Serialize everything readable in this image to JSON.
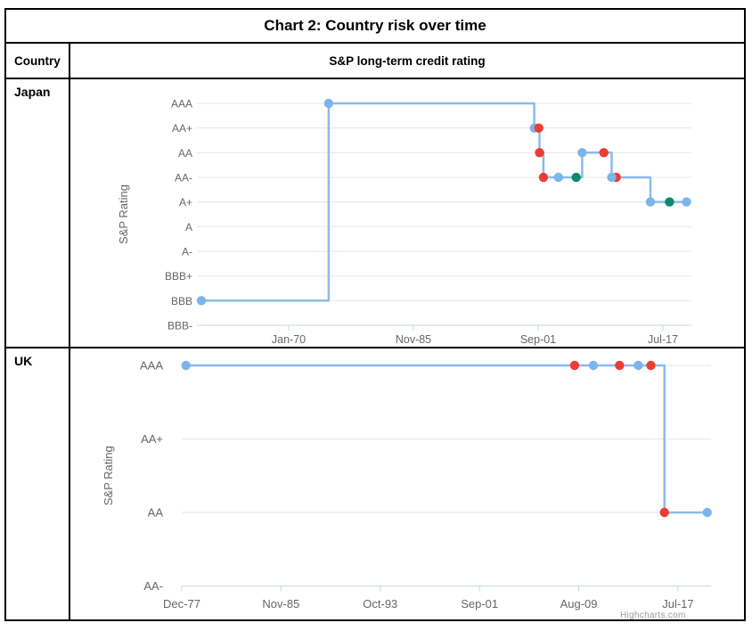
{
  "page_title": "Chart 2: Country risk over time",
  "table": {
    "column_header": "Country",
    "value_header": "S&P long-term credit rating",
    "row_labels": [
      "Japan",
      "UK"
    ]
  },
  "watermark": "Highcharts.com",
  "colors": {
    "blue": "#7cb5ec",
    "red": "#ee3c32",
    "green": "#0d8a6c",
    "line": "#8abbec",
    "grid": "#e6e6e6",
    "axis": "#ccd6eb",
    "tick_text": "#666666"
  },
  "chart_data": [
    {
      "type": "line",
      "step": true,
      "grid": true,
      "legend": false,
      "country": "Japan",
      "ylabel": "S&P Rating",
      "y_categories": [
        "AAA",
        "AA+",
        "AA",
        "AA-",
        "A+",
        "A",
        "A-",
        "BBB+",
        "BBB",
        "BBB-"
      ],
      "x_tick_labels": [
        "Jan-70",
        "Nov-85",
        "Sep-01",
        "Jul-17"
      ],
      "points": [
        {
          "date": "Dec-58",
          "rating": "BBB",
          "marker": "blue"
        },
        {
          "date": "Feb-75",
          "rating": "AAA",
          "marker": "blue"
        },
        {
          "date": "Mar-01",
          "rating": "AA+",
          "marker": "blue"
        },
        {
          "date": "Oct-01",
          "rating": "AA+",
          "marker": "red"
        },
        {
          "date": "Nov-01",
          "rating": "AA",
          "marker": "red"
        },
        {
          "date": "May-02",
          "rating": "AA-",
          "marker": "red"
        },
        {
          "date": "Apr-04",
          "rating": "AA-",
          "marker": "blue"
        },
        {
          "date": "Jul-06",
          "rating": "AA-",
          "marker": "green"
        },
        {
          "date": "Apr-07",
          "rating": "AA",
          "marker": "blue"
        },
        {
          "date": "Jan-10",
          "rating": "AA",
          "marker": "red"
        },
        {
          "date": "Aug-11",
          "rating": "AA-",
          "marker": "red"
        },
        {
          "date": "Jan-11",
          "rating": "AA-",
          "marker": "blue"
        },
        {
          "date": "Dec-15",
          "rating": "A+",
          "marker": "blue"
        },
        {
          "date": "May-18",
          "rating": "A+",
          "marker": "green"
        },
        {
          "date": "Jul-20",
          "rating": "A+",
          "marker": "blue"
        }
      ]
    },
    {
      "type": "line",
      "step": true,
      "grid": true,
      "legend": false,
      "country": "UK",
      "ylabel": "S&P Rating",
      "y_categories": [
        "AAA",
        "AA+",
        "AA",
        "AA-"
      ],
      "x_tick_labels": [
        "Dec-77",
        "Nov-85",
        "Oct-93",
        "Sep-01",
        "Aug-09",
        "Jul-17"
      ],
      "points": [
        {
          "date": "Apr-78",
          "rating": "AAA",
          "marker": "blue"
        },
        {
          "date": "Apr-09",
          "rating": "AAA",
          "marker": "red"
        },
        {
          "date": "Oct-10",
          "rating": "AAA",
          "marker": "blue"
        },
        {
          "date": "Nov-12",
          "rating": "AAA",
          "marker": "red"
        },
        {
          "date": "May-14",
          "rating": "AAA",
          "marker": "blue"
        },
        {
          "date": "May-15",
          "rating": "AAA",
          "marker": "red"
        },
        {
          "date": "Jun-16",
          "rating": "AA",
          "marker": "red"
        },
        {
          "date": "Nov-19",
          "rating": "AA",
          "marker": "blue"
        }
      ]
    }
  ]
}
